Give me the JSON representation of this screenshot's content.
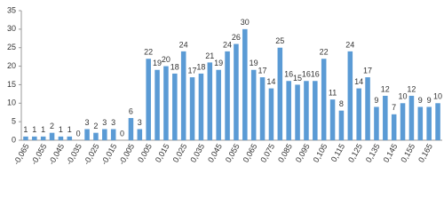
{
  "chart_data": {
    "type": "bar",
    "color": "#5b9bd5",
    "categories": [
      "-0,065",
      null,
      "-0,055",
      null,
      "-0,045",
      null,
      "-0,035",
      null,
      "-0,025",
      null,
      "-0,015",
      null,
      "-0,005",
      null,
      "0,005",
      null,
      "0,015",
      null,
      "0,025",
      null,
      "0,035",
      null,
      "0,045",
      null,
      "0,055",
      null,
      "0,065",
      null,
      "0,075",
      null,
      "0,085",
      null,
      "0,095",
      null,
      "0,105",
      null,
      "0,115",
      null,
      "0,125",
      null,
      "0,135",
      null,
      "0,145",
      null,
      "0,155",
      null,
      "0,165",
      null
    ],
    "values": [
      1,
      1,
      1,
      2,
      1,
      1,
      0,
      3,
      2,
      3,
      3,
      0,
      6,
      3,
      22,
      19,
      20,
      18,
      24,
      17,
      18,
      21,
      19,
      24,
      26,
      30,
      19,
      17,
      14,
      25,
      16,
      15,
      16,
      16,
      22,
      11,
      8,
      24,
      14,
      17,
      9,
      12,
      7,
      10,
      12,
      9,
      9,
      10
    ],
    "ylim": [
      0,
      35
    ],
    "yticks": [
      0,
      5,
      10,
      15,
      20,
      25,
      30,
      35
    ],
    "grid": false
  }
}
